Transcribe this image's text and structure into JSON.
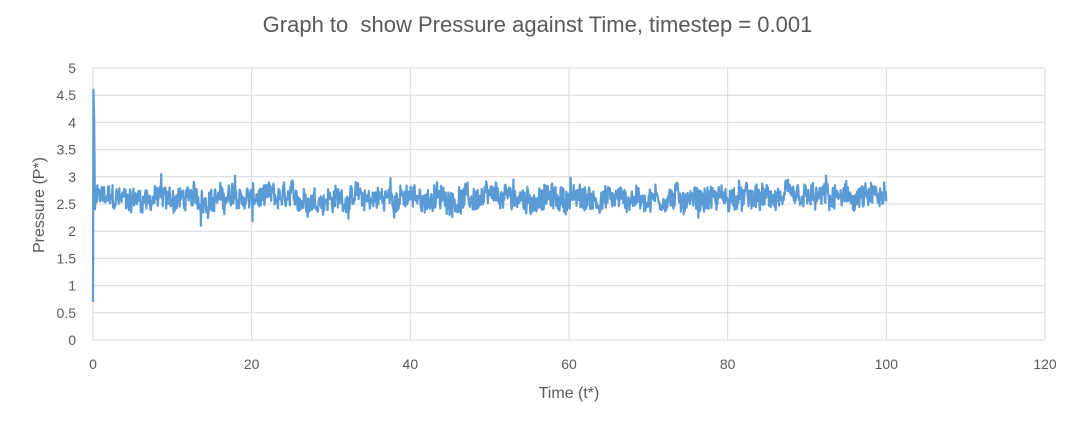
{
  "chart_data": {
    "type": "line",
    "title": "Graph to  show Pressure against Time, timestep = 0.001",
    "xlabel": "Time (t*)",
    "ylabel": "Pressure (P*)",
    "xlim": [
      0,
      120
    ],
    "ylim": [
      0,
      5
    ],
    "x_ticks": [
      "0",
      "20",
      "40",
      "60",
      "80",
      "100",
      "120"
    ],
    "y_ticks": [
      "0",
      "0.5",
      "1",
      "1.5",
      "2",
      "2.5",
      "3",
      "3.5",
      "4",
      "4.5",
      "5"
    ],
    "grid": true,
    "legend": "none",
    "line_color": "#5b9bd5",
    "series": [
      {
        "x_range": [
          0,
          100
        ],
        "initial_values": [
          [
            0.0,
            0.7
          ],
          [
            0.05,
            4.6
          ],
          [
            0.15,
            4.0
          ],
          [
            0.25,
            2.4
          ],
          [
            0.4,
            2.8
          ]
        ],
        "mean": 2.6,
        "typical_band": [
          2.35,
          2.85
        ],
        "extremes": [
          [
            8.6,
            3.05
          ],
          [
            13.6,
            2.1
          ],
          [
            17.9,
            3.02
          ],
          [
            20.1,
            2.18
          ],
          [
            37.5,
            2.98
          ],
          [
            53.0,
            2.95
          ],
          [
            60.2,
            2.98
          ],
          [
            76.3,
            2.25
          ],
          [
            92.4,
            3.02
          ],
          [
            100.0,
            2.55
          ]
        ]
      }
    ]
  }
}
